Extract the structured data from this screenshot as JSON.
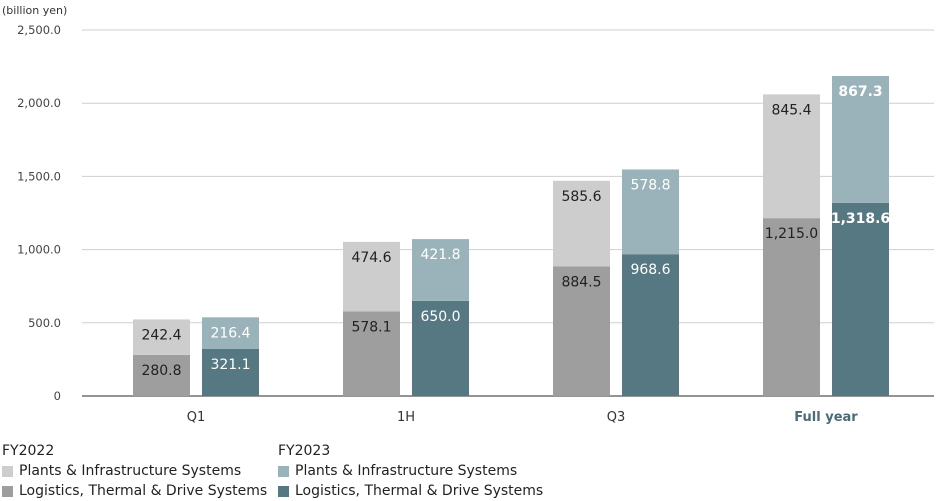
{
  "chart_data": {
    "type": "bar",
    "stacked": true,
    "grouped": true,
    "unit_label": "(billion yen)",
    "categories": [
      "Q1",
      "1H",
      "Q3",
      "Full year"
    ],
    "highlight_category": "Full year",
    "y_ticks": [
      "0",
      "500.0",
      "1,000.0",
      "1,500.0",
      "2,000.0",
      "2,500.0"
    ],
    "ylim": [
      0,
      2500
    ],
    "grid": true,
    "groups": [
      {
        "name": "FY2022",
        "series": [
          {
            "name": "Logistics, Thermal & Drive Systems",
            "values": [
              280.8,
              578.1,
              884.5,
              1215.0
            ],
            "labels": [
              "280.8",
              "578.1",
              "884.5",
              "1,215.0"
            ],
            "color": "#9e9e9e",
            "label_color": "#222222"
          },
          {
            "name": "Plants & Infrastructure Systems",
            "values": [
              242.4,
              474.6,
              585.6,
              845.4
            ],
            "labels": [
              "242.4",
              "474.6",
              "585.6",
              "845.4"
            ],
            "color": "#cdcdcd",
            "label_color": "#222222"
          }
        ]
      },
      {
        "name": "FY2023",
        "series": [
          {
            "name": "Logistics, Thermal & Drive Systems",
            "values": [
              321.1,
              650.0,
              968.6,
              1318.6
            ],
            "labels": [
              "321.1",
              "650.0",
              "968.6",
              "1,318.6"
            ],
            "color": "#557882",
            "label_color": "#ffffff"
          },
          {
            "name": "Plants & Infrastructure Systems",
            "values": [
              216.4,
              421.8,
              578.8,
              867.3
            ],
            "labels": [
              "216.4",
              "421.8",
              "578.8",
              "867.3"
            ],
            "color": "#9ab3bb",
            "label_color": "#ffffff"
          }
        ]
      }
    ],
    "legend_placement": "bottom-left"
  },
  "legend": {
    "fy2022": {
      "title": "FY2022",
      "items": [
        {
          "label": "Plants & Infrastructure Systems",
          "color": "#cdcdcd"
        },
        {
          "label": "Logistics, Thermal & Drive Systems",
          "color": "#9e9e9e"
        }
      ]
    },
    "fy2023": {
      "title": "FY2023",
      "items": [
        {
          "label": "Plants & Infrastructure Systems",
          "color": "#9ab3bb"
        },
        {
          "label": "Logistics, Thermal & Drive Systems",
          "color": "#557882"
        }
      ]
    }
  }
}
